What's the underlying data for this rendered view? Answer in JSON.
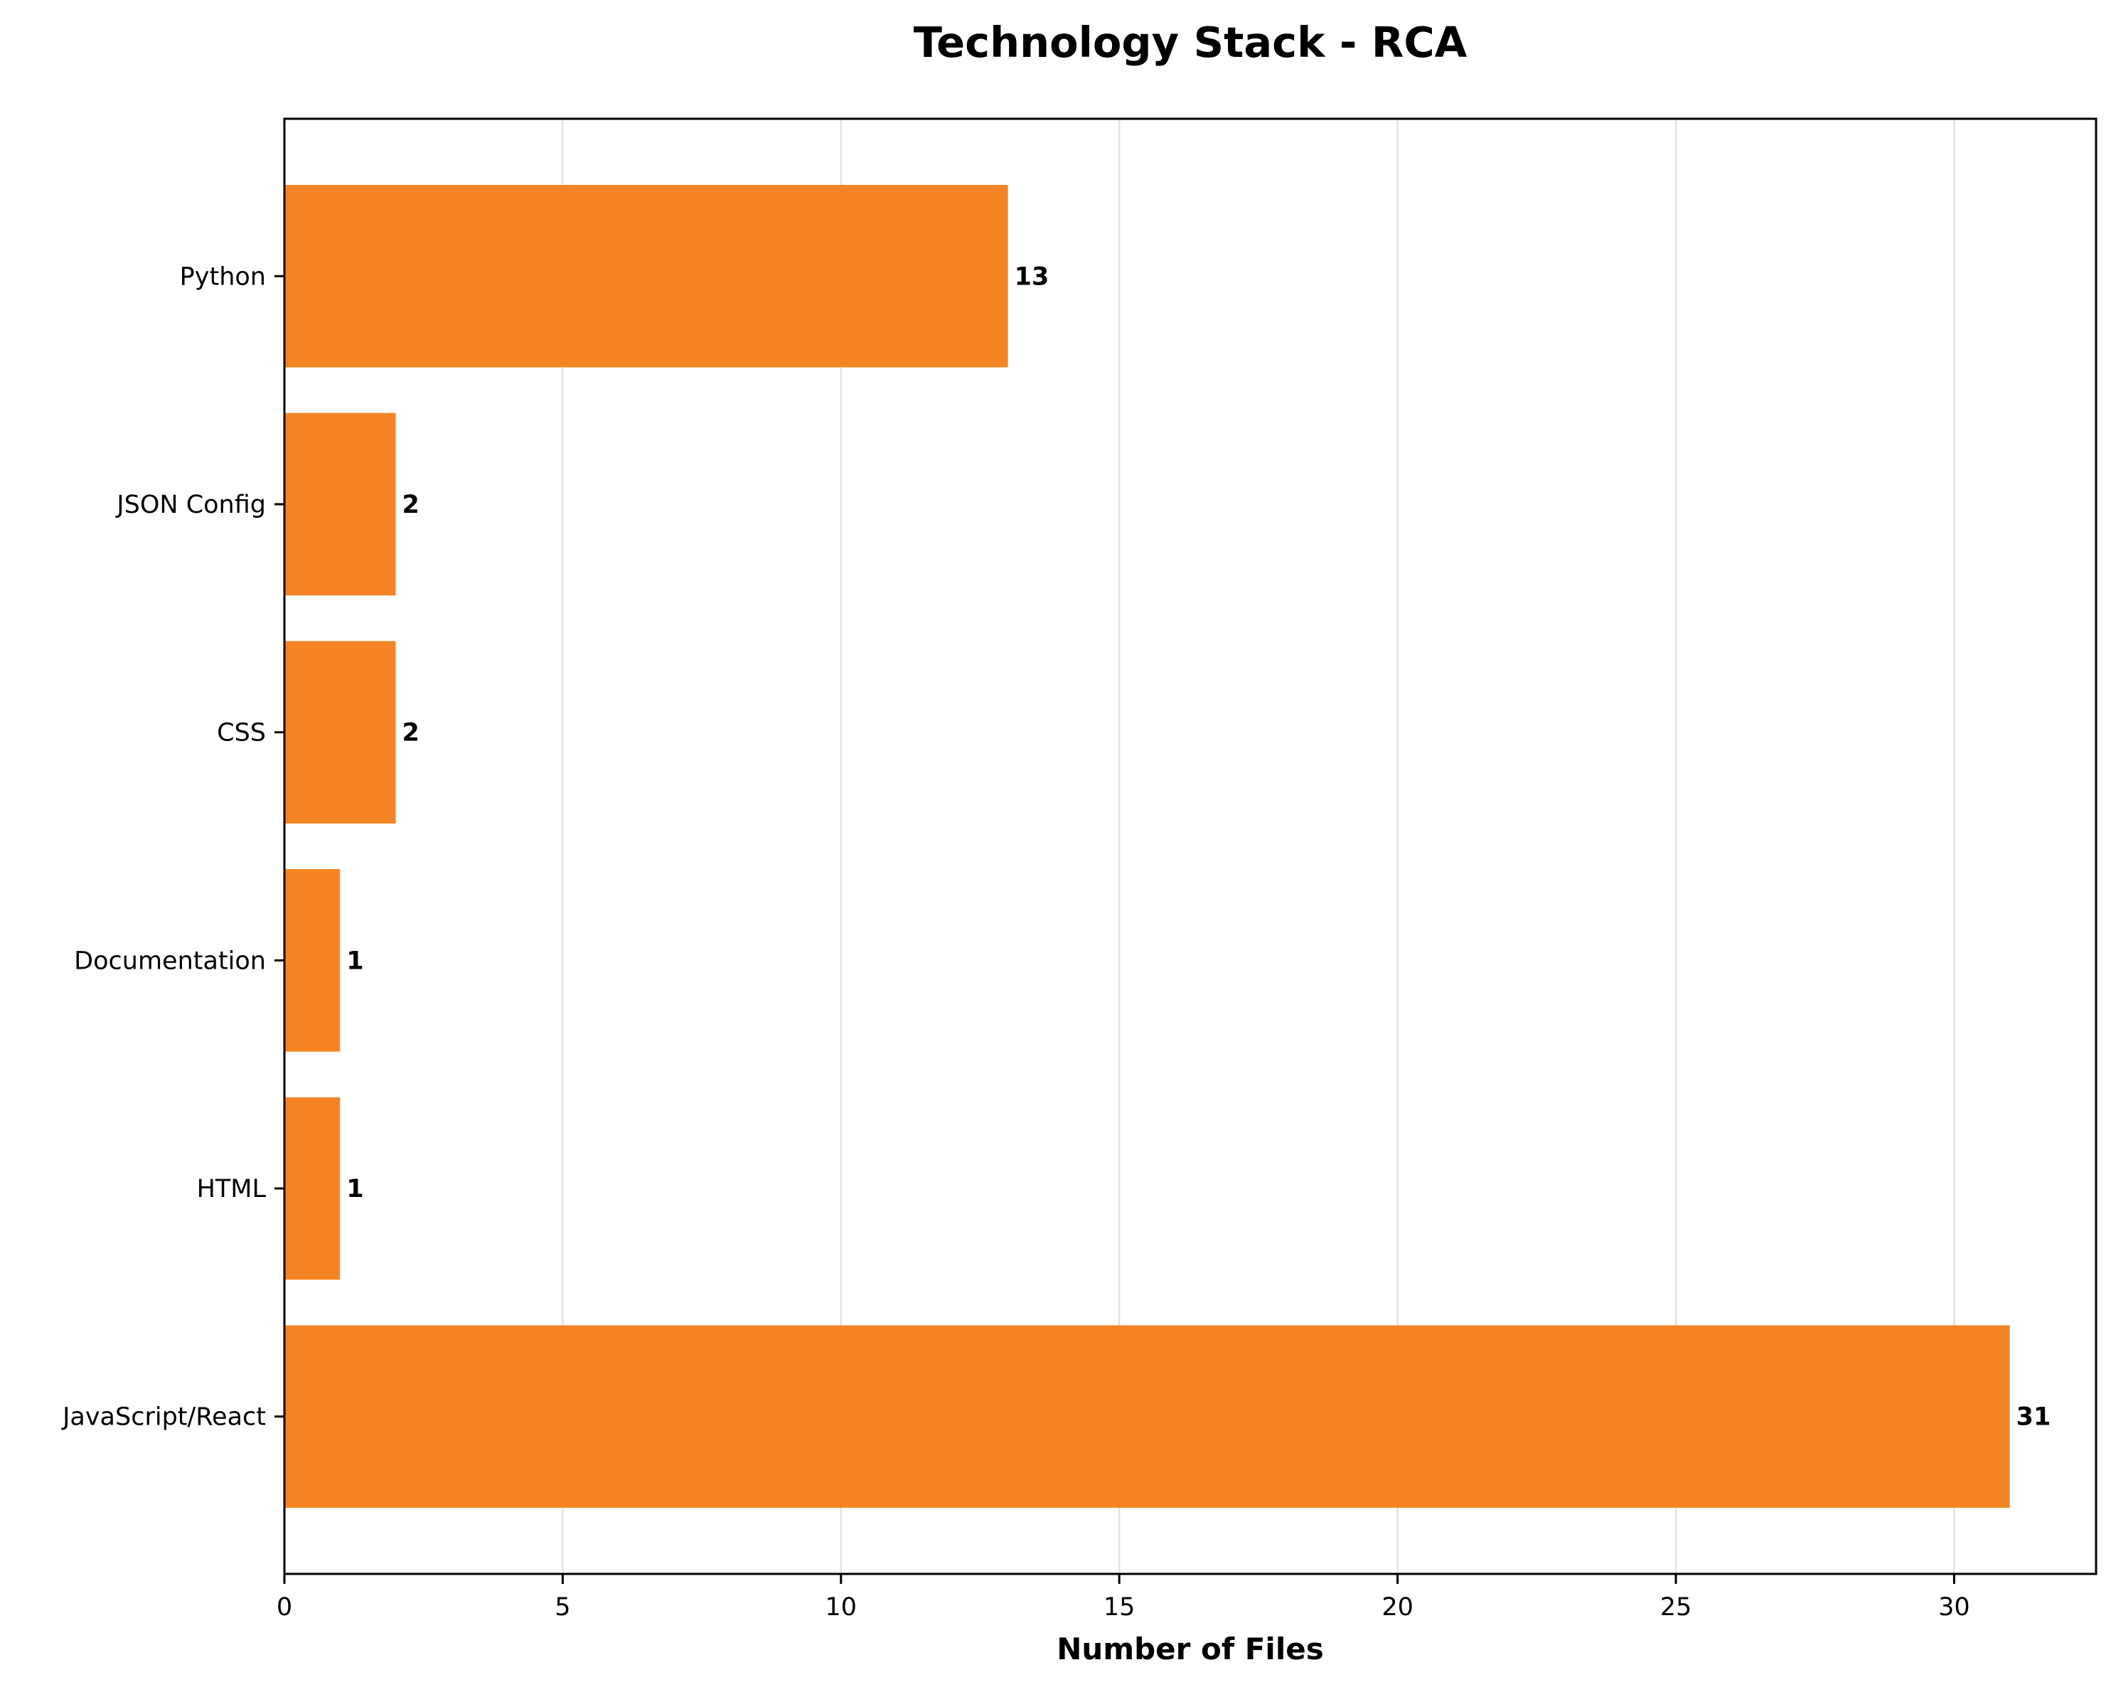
{
  "chart_data": {
    "type": "bar",
    "orientation": "horizontal",
    "title": "Technology Stack - RCA",
    "xlabel": "Number of Files",
    "ylabel": "",
    "categories": [
      "JavaScript/React",
      "HTML",
      "Documentation",
      "CSS",
      "JSON Config",
      "Python"
    ],
    "values": [
      31,
      1,
      1,
      2,
      2,
      13
    ],
    "data_labels": [
      "31",
      "1",
      "1",
      "2",
      "2",
      "13"
    ],
    "xlim": [
      0,
      32.55
    ],
    "xticks": [
      0,
      5,
      10,
      15,
      20,
      25,
      30
    ],
    "xtick_labels": [
      "0",
      "5",
      "10",
      "15",
      "20",
      "25",
      "30"
    ],
    "grid": "vertical",
    "legend": "none",
    "colors": {
      "bar": "#F48423",
      "grid": "#E3E3E3",
      "axis": "#000000",
      "text": "#000000"
    }
  }
}
